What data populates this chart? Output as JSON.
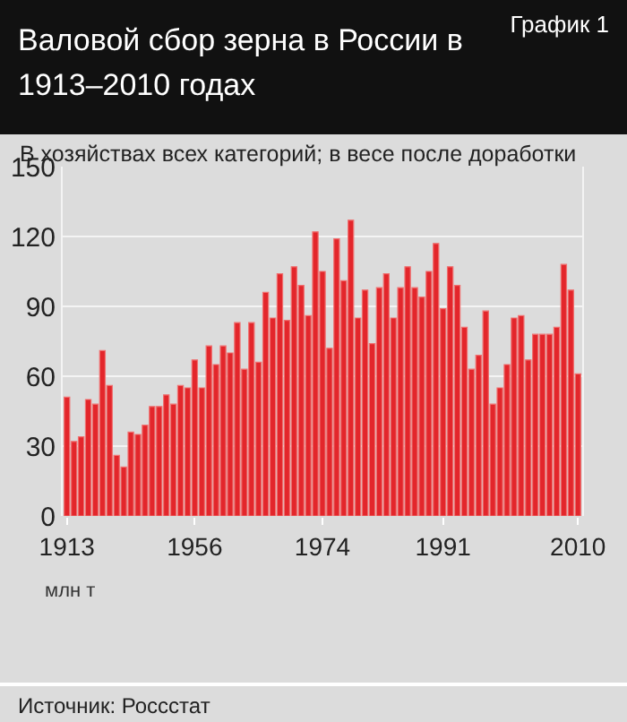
{
  "chart_data": {
    "type": "bar",
    "title": "Валовой сбор зерна в России в 1913–2010 годах",
    "subtitle": "В хозяйствах всех категорий; в весе после доработки",
    "annotations": [
      "График 1",
      "Источник: Россстат",
      "млн т"
    ],
    "categories": [
      "1913",
      null,
      null,
      null,
      null,
      null,
      null,
      null,
      null,
      null,
      null,
      null,
      null,
      null,
      null,
      null,
      null,
      null,
      "1956",
      null,
      null,
      null,
      null,
      null,
      null,
      null,
      null,
      null,
      null,
      null,
      null,
      null,
      null,
      null,
      null,
      null,
      "1974",
      null,
      null,
      null,
      null,
      null,
      null,
      null,
      null,
      null,
      null,
      null,
      null,
      null,
      null,
      null,
      null,
      "1991",
      null,
      null,
      null,
      null,
      null,
      null,
      null,
      null,
      null,
      null,
      null,
      null,
      null,
      null,
      null,
      null,
      null,
      null,
      "2010"
    ],
    "values": [
      51,
      32,
      34,
      50,
      48,
      71,
      56,
      26,
      21,
      36,
      35,
      39,
      47,
      47,
      52,
      48,
      56,
      55,
      67,
      55,
      73,
      65,
      73,
      70,
      83,
      63,
      83,
      66,
      96,
      85,
      104,
      84,
      107,
      99,
      86,
      122,
      105,
      72,
      119,
      101,
      127,
      85,
      97,
      74,
      98,
      104,
      85,
      98,
      107,
      98,
      94,
      105,
      117,
      89,
      107,
      99,
      81,
      63,
      69,
      88,
      48,
      55,
      65,
      85,
      86,
      67,
      78,
      78,
      78,
      81,
      108,
      97,
      61
    ],
    "color": "#e3262b",
    "ylim": [
      0,
      150
    ],
    "yticks": [
      0,
      30,
      60,
      90,
      120,
      150
    ],
    "grid": "y"
  }
}
